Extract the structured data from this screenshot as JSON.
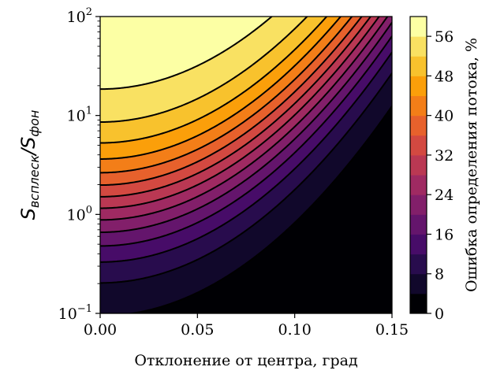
{
  "chart_data": {
    "type": "heatmap",
    "subtype": "filled-contour",
    "xlabel": "Отклонение от центра, град",
    "ylabel": {
      "base_1": "S",
      "sub_1": "всплеск",
      "slash": "/",
      "base_2": "S",
      "sub_2": "фон"
    },
    "x_range": [
      0.0,
      0.15
    ],
    "y_range": [
      0.1,
      100
    ],
    "y_scale": "log",
    "x_ticks": [
      {
        "value": 0.0,
        "label": "0.00"
      },
      {
        "value": 0.05,
        "label": "0.05"
      },
      {
        "value": 0.1,
        "label": "0.10"
      },
      {
        "value": 0.15,
        "label": "0.15"
      }
    ],
    "y_ticks": [
      {
        "value": 0.1,
        "base": "10",
        "exp": "−1"
      },
      {
        "value": 1,
        "base": "10",
        "exp": "0"
      },
      {
        "value": 10,
        "base": "10",
        "exp": "1"
      },
      {
        "value": 100,
        "base": "10",
        "exp": "2"
      }
    ],
    "colorbar": {
      "label": "Ошибка определения потока, %",
      "min": 0,
      "max": 60,
      "level_step": 4,
      "ticks": [
        0,
        8,
        16,
        24,
        32,
        40,
        48,
        56
      ],
      "colormap": "inferno"
    },
    "colormap_stops": [
      "#000004",
      "#1b0c41",
      "#4a0c6b",
      "#781c6d",
      "#a52c60",
      "#cf4446",
      "#ed6925",
      "#fb9b06",
      "#f7d13d",
      "#fcffa4"
    ],
    "contour_levels": [
      4,
      8,
      12,
      16,
      20,
      24,
      28,
      32,
      36,
      40,
      44,
      48,
      52,
      56
    ],
    "field_model": {
      "saturation_error": 60,
      "half_saturation_ratio": 1.32,
      "beam_width_deg": 0.048
    },
    "grid": false
  }
}
